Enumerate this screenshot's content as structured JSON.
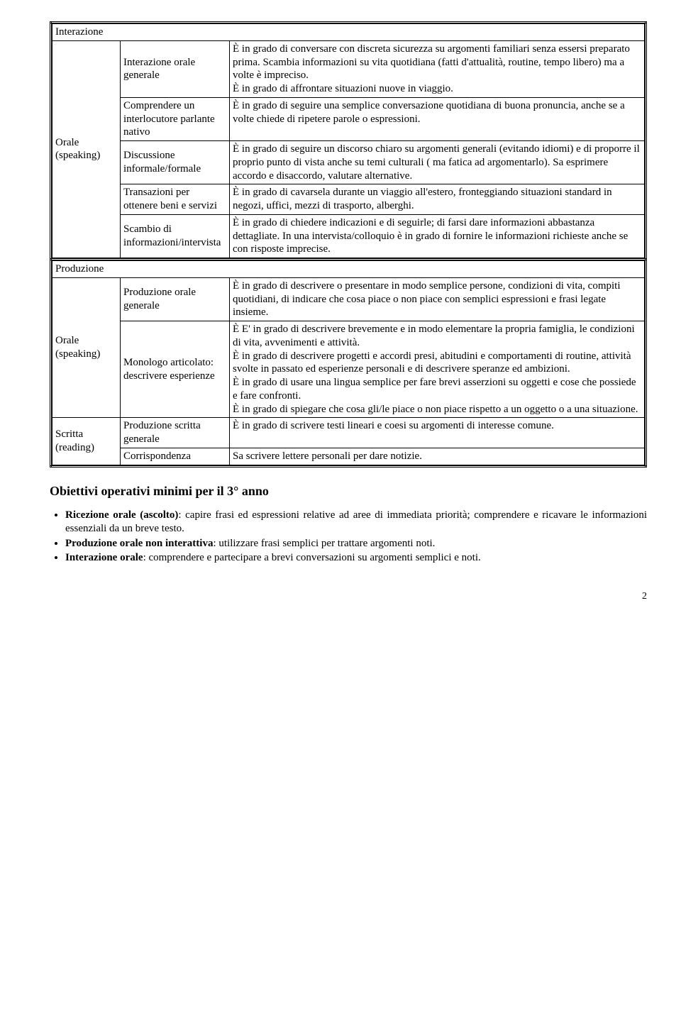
{
  "interazione": {
    "header": "Interazione",
    "skill_label": "Orale (speaking)",
    "rows": [
      {
        "label": "Interazione orale generale",
        "desc": "È in grado di conversare con discreta sicurezza su argomenti familiari senza essersi preparato prima. Scambia informazioni su vita quotidiana (fatti d'attualità, routine, tempo libero) ma a volte è impreciso.\nÈ in grado di affrontare situazioni nuove in viaggio."
      },
      {
        "label": "Comprendere un interlocutore parlante nativo",
        "desc": "È in grado di seguire una semplice conversazione quotidiana di buona pronuncia, anche se a volte chiede di ripetere parole o espressioni."
      },
      {
        "label": "Discussione informale/formale",
        "desc": "È in grado di seguire un discorso chiaro su argomenti generali (evitando idiomi) e di proporre il proprio punto di vista anche su temi culturali ( ma fatica ad argomentarlo). Sa esprimere accordo e disaccordo, valutare alternative."
      },
      {
        "label": "Transazioni per ottenere beni e servizi",
        "desc": "È in grado di cavarsela durante un viaggio all'estero, fronteggiando situazioni standard in negozi, uffici, mezzi di trasporto, alberghi."
      },
      {
        "label": "Scambio di informazioni/intervista",
        "desc": "È in grado di chiedere indicazioni e di seguirle; di farsi dare informazioni abbastanza dettagliate. In una intervista/colloquio è in grado di fornire le informazioni richieste anche se con risposte imprecise."
      }
    ]
  },
  "produzione": {
    "header": "Produzione",
    "orale_label": "Orale (speaking)",
    "scritta_label": "Scritta (reading)",
    "orale_rows": [
      {
        "label": "Produzione orale generale",
        "desc": "È in grado di descrivere o presentare in modo semplice persone, condizioni di vita, compiti quotidiani, di indicare che cosa piace o non piace con semplici espressioni e frasi legate insieme."
      },
      {
        "label": "Monologo articolato: descrivere esperienze",
        "desc": "È E' in grado di descrivere brevemente e in modo elementare la propria famiglia, le condizioni di vita, avvenimenti e attività.\nÈ in grado di descrivere progetti e accordi presi, abitudini e comportamenti di routine, attività svolte in passato ed esperienze personali e di descrivere speranze ed ambizioni.\nÈ in grado di usare una lingua semplice per fare brevi asserzioni su oggetti e cose che possiede e fare confronti.\nÈ in grado di spiegare che cosa gli/le piace o non piace rispetto a un oggetto o a una situazione."
      }
    ],
    "scritta_rows": [
      {
        "label": "Produzione scritta generale",
        "desc": "È in grado di scrivere testi lineari e coesi su argomenti di interesse comune."
      },
      {
        "label": "Corrispondenza",
        "desc": "Sa scrivere lettere personali per dare notizie."
      }
    ]
  },
  "objectives": {
    "heading": "Obiettivi operativi minimi per il 3° anno",
    "items": [
      {
        "bold": "Ricezione orale (ascolto)",
        "rest": ": capire frasi ed espressioni relative ad aree di immediata priorità; comprendere e ricavare le informazioni essenziali da un breve testo."
      },
      {
        "bold": "Produzione orale non interattiva",
        "rest": ": utilizzare frasi semplici per trattare argomenti noti."
      },
      {
        "bold": "Interazione orale",
        "rest": ": comprendere e partecipare a brevi conversazioni su argomenti semplici e noti."
      }
    ]
  },
  "page_number": "2"
}
